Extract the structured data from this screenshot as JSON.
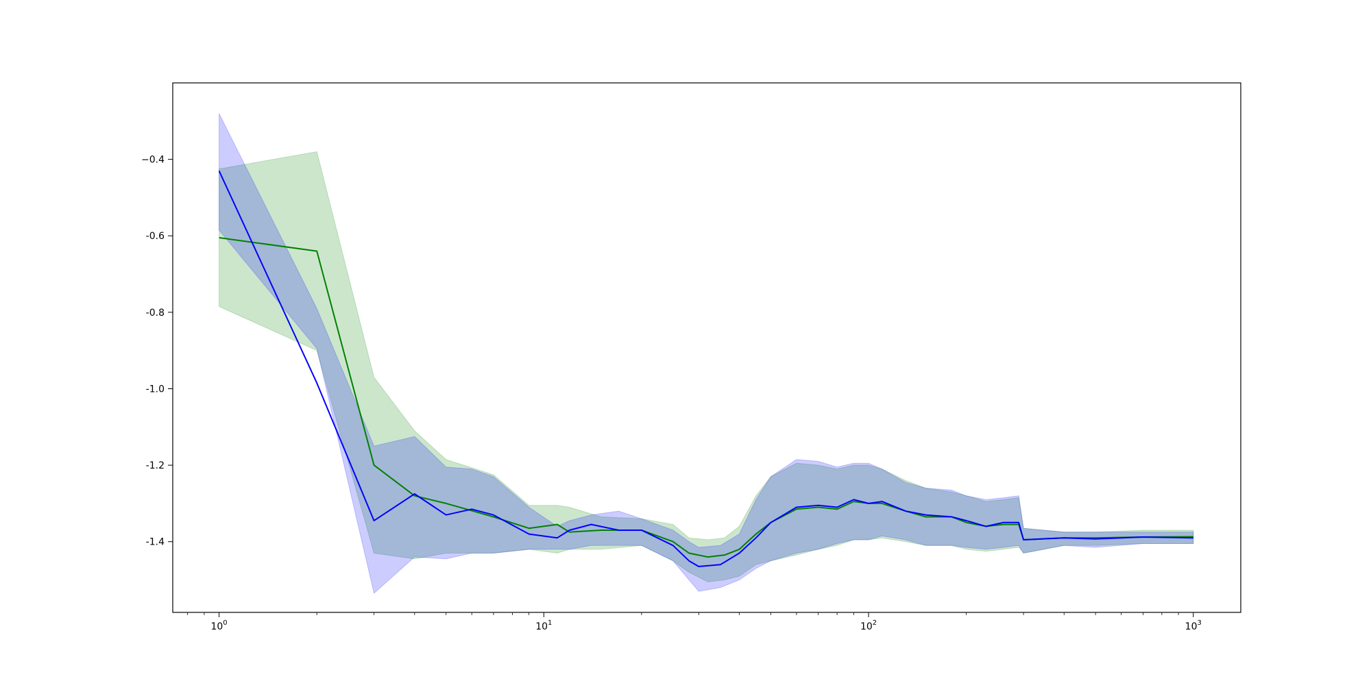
{
  "chart_data": {
    "type": "line",
    "title": "",
    "xlabel": "",
    "ylabel": "",
    "xscale": "log",
    "xlim": [
      0.72,
      1400
    ],
    "ylim": [
      -1.585,
      -0.2
    ],
    "grid": false,
    "legend": "none",
    "x_ticks": [
      {
        "value": 1,
        "base": "10",
        "exp": "0"
      },
      {
        "value": 10,
        "base": "10",
        "exp": "1"
      },
      {
        "value": 100,
        "base": "10",
        "exp": "2"
      },
      {
        "value": 1000,
        "base": "10",
        "exp": "3"
      }
    ],
    "y_ticks": [
      {
        "value": -0.4,
        "label": "−0.4"
      },
      {
        "value": -0.6,
        "label": "-0.6"
      },
      {
        "value": -0.8,
        "label": "-0.8"
      },
      {
        "value": -1.0,
        "label": "-1.0"
      },
      {
        "value": -1.2,
        "label": "-1.2"
      },
      {
        "value": -1.4,
        "label": "-1.4"
      }
    ],
    "series": [
      {
        "color": "#008000",
        "band_color": "#008000",
        "band_opacity": 0.2,
        "points": [
          [
            1,
            -0.605,
            -0.785,
            -0.425
          ],
          [
            2,
            -0.64,
            -0.9,
            -0.38
          ],
          [
            3,
            -1.2,
            -1.43,
            -0.97
          ],
          [
            4,
            -1.28,
            -1.445,
            -1.11
          ],
          [
            5,
            -1.3,
            -1.43,
            -1.185
          ],
          [
            7,
            -1.335,
            -1.43,
            -1.225
          ],
          [
            9,
            -1.365,
            -1.42,
            -1.305
          ],
          [
            11,
            -1.355,
            -1.43,
            -1.305
          ],
          [
            12,
            -1.375,
            -1.42,
            -1.31
          ],
          [
            15,
            -1.37,
            -1.42,
            -1.335
          ],
          [
            20,
            -1.37,
            -1.41,
            -1.34
          ],
          [
            25,
            -1.4,
            -1.45,
            -1.355
          ],
          [
            28,
            -1.43,
            -1.48,
            -1.39
          ],
          [
            32,
            -1.44,
            -1.505,
            -1.395
          ],
          [
            36,
            -1.435,
            -1.5,
            -1.39
          ],
          [
            40,
            -1.42,
            -1.49,
            -1.36
          ],
          [
            45,
            -1.38,
            -1.46,
            -1.28
          ],
          [
            50,
            -1.35,
            -1.45,
            -1.23
          ],
          [
            60,
            -1.315,
            -1.435,
            -1.195
          ],
          [
            70,
            -1.31,
            -1.42,
            -1.2
          ],
          [
            80,
            -1.315,
            -1.41,
            -1.21
          ],
          [
            90,
            -1.295,
            -1.395,
            -1.2
          ],
          [
            100,
            -1.3,
            -1.395,
            -1.2
          ],
          [
            110,
            -1.3,
            -1.39,
            -1.21
          ],
          [
            130,
            -1.32,
            -1.4,
            -1.24
          ],
          [
            150,
            -1.335,
            -1.41,
            -1.26
          ],
          [
            180,
            -1.335,
            -1.41,
            -1.27
          ],
          [
            200,
            -1.35,
            -1.42,
            -1.28
          ],
          [
            230,
            -1.36,
            -1.425,
            -1.295
          ],
          [
            260,
            -1.355,
            -1.42,
            -1.29
          ],
          [
            290,
            -1.355,
            -1.415,
            -1.285
          ],
          [
            300,
            -1.395,
            -1.43,
            -1.365
          ],
          [
            400,
            -1.39,
            -1.41,
            -1.375
          ],
          [
            500,
            -1.39,
            -1.41,
            -1.375
          ],
          [
            700,
            -1.388,
            -1.405,
            -1.37
          ],
          [
            1000,
            -1.387,
            -1.405,
            -1.37
          ]
        ]
      },
      {
        "color": "#0000ff",
        "band_color": "#0000ff",
        "band_opacity": 0.2,
        "points": [
          [
            1,
            -0.43,
            -0.585,
            -0.28
          ],
          [
            2,
            -0.985,
            -0.895,
            -0.79
          ],
          [
            3,
            -1.345,
            -1.535,
            -1.15
          ],
          [
            4,
            -1.275,
            -1.44,
            -1.125
          ],
          [
            5,
            -1.33,
            -1.445,
            -1.205
          ],
          [
            6,
            -1.315,
            -1.43,
            -1.21
          ],
          [
            7,
            -1.33,
            -1.43,
            -1.23
          ],
          [
            9,
            -1.38,
            -1.42,
            -1.31
          ],
          [
            11,
            -1.39,
            -1.42,
            -1.36
          ],
          [
            12,
            -1.37,
            -1.42,
            -1.345
          ],
          [
            14,
            -1.355,
            -1.41,
            -1.33
          ],
          [
            17,
            -1.37,
            -1.41,
            -1.32
          ],
          [
            20,
            -1.37,
            -1.41,
            -1.34
          ],
          [
            25,
            -1.41,
            -1.45,
            -1.37
          ],
          [
            28,
            -1.45,
            -1.5,
            -1.4
          ],
          [
            30,
            -1.465,
            -1.53,
            -1.415
          ],
          [
            35,
            -1.46,
            -1.52,
            -1.41
          ],
          [
            40,
            -1.43,
            -1.5,
            -1.38
          ],
          [
            45,
            -1.39,
            -1.47,
            -1.29
          ],
          [
            50,
            -1.35,
            -1.45,
            -1.23
          ],
          [
            60,
            -1.31,
            -1.43,
            -1.185
          ],
          [
            70,
            -1.305,
            -1.42,
            -1.19
          ],
          [
            80,
            -1.31,
            -1.405,
            -1.205
          ],
          [
            90,
            -1.29,
            -1.395,
            -1.195
          ],
          [
            100,
            -1.3,
            -1.395,
            -1.195
          ],
          [
            110,
            -1.295,
            -1.385,
            -1.21
          ],
          [
            130,
            -1.32,
            -1.395,
            -1.245
          ],
          [
            150,
            -1.33,
            -1.41,
            -1.26
          ],
          [
            180,
            -1.335,
            -1.41,
            -1.265
          ],
          [
            200,
            -1.345,
            -1.415,
            -1.28
          ],
          [
            230,
            -1.36,
            -1.42,
            -1.29
          ],
          [
            260,
            -1.35,
            -1.415,
            -1.285
          ],
          [
            290,
            -1.35,
            -1.41,
            -1.28
          ],
          [
            300,
            -1.395,
            -1.43,
            -1.365
          ],
          [
            400,
            -1.39,
            -1.41,
            -1.375
          ],
          [
            500,
            -1.393,
            -1.415,
            -1.375
          ],
          [
            700,
            -1.388,
            -1.405,
            -1.375
          ],
          [
            1000,
            -1.39,
            -1.405,
            -1.375
          ]
        ]
      }
    ]
  }
}
